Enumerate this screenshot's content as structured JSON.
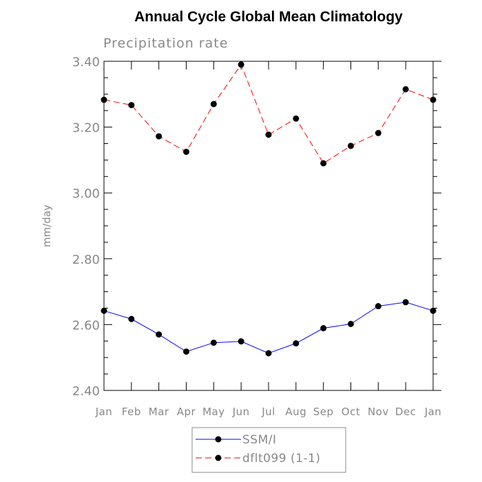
{
  "chart_data": {
    "type": "line",
    "title": "Annual Cycle Global Mean Climatology",
    "subtitle": "Precipitation rate",
    "ylabel": "mm/day",
    "xlabel": "",
    "ylim": [
      2.4,
      3.4
    ],
    "yticks": [
      "2.40",
      "2.60",
      "2.80",
      "3.00",
      "3.20",
      "3.40"
    ],
    "categories": [
      "Jan",
      "Feb",
      "Mar",
      "Apr",
      "May",
      "Jun",
      "Jul",
      "Aug",
      "Sep",
      "Oct",
      "Nov",
      "Dec",
      "Jan"
    ],
    "series": [
      {
        "name": "SSM/I",
        "color": "#0000ff",
        "dash": "solid",
        "values": [
          2.642,
          2.617,
          2.57,
          2.518,
          2.545,
          2.549,
          2.513,
          2.543,
          2.589,
          2.602,
          2.656,
          2.668,
          2.642
        ]
      },
      {
        "name": "dflt099 (1-1)",
        "color": "#ff0000",
        "dash": "dashed",
        "values": [
          3.283,
          3.267,
          3.172,
          3.125,
          3.27,
          3.39,
          3.177,
          3.226,
          3.09,
          3.143,
          3.182,
          3.315,
          3.283
        ]
      }
    ],
    "grid": false,
    "legend": "bottom-center"
  }
}
